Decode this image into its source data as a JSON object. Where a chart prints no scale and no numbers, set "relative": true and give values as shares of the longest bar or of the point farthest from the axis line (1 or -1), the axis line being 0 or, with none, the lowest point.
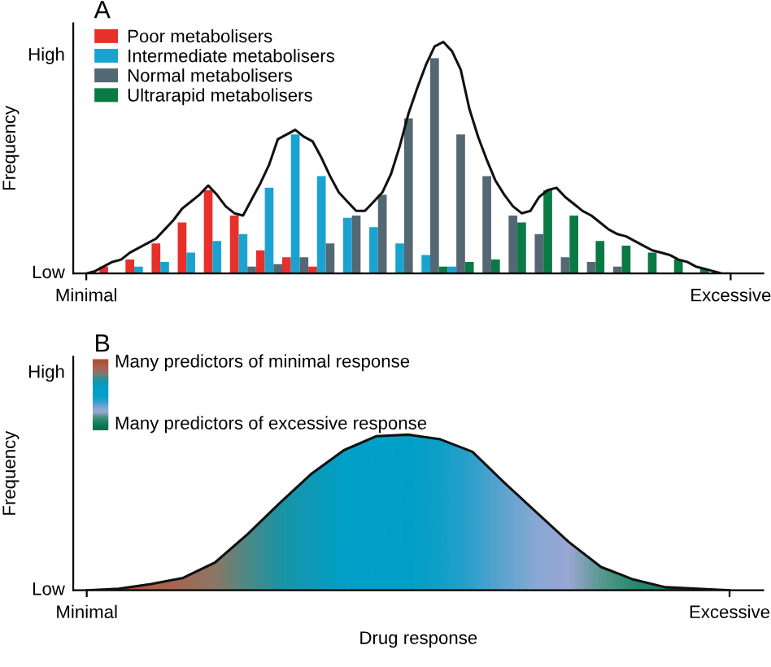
{
  "chart_data": [
    {
      "type": "bar",
      "title": "A",
      "ylabel": "Frequency",
      "relative": true,
      "annotations": [
        "High",
        "Low"
      ],
      "grid": false,
      "legend": "top left",
      "categories": [
        "Minimal",
        null,
        null,
        null,
        null,
        null,
        null,
        null,
        null,
        null,
        null,
        null,
        null,
        null,
        null,
        null,
        null,
        null,
        null,
        null,
        null,
        null,
        null,
        null,
        null,
        null,
        null,
        null,
        null,
        null,
        null,
        null,
        null,
        null,
        null,
        null,
        null,
        null,
        null,
        null,
        null,
        null,
        null,
        null,
        null,
        null,
        null,
        null,
        null,
        null,
        null,
        null,
        null,
        null,
        null,
        null,
        null,
        null,
        null,
        null,
        null,
        null,
        null,
        null,
        null,
        null,
        null,
        null,
        null,
        null,
        null,
        null,
        null,
        null,
        "Excessive"
      ],
      "series": [
        {
          "name": "Poor metabolisers",
          "color": "#e8302a",
          "values": [
            null,
            null,
            0.03,
            null,
            null,
            0.06,
            null,
            null,
            0.13,
            null,
            null,
            0.22,
            null,
            null,
            0.36,
            null,
            null,
            0.25,
            null,
            null,
            0.1,
            null,
            null,
            0.07,
            null,
            null,
            0.03,
            null,
            null,
            null,
            null,
            null,
            null,
            null,
            null,
            null,
            null,
            null,
            null,
            null,
            null,
            null,
            null,
            null,
            null,
            null,
            null,
            null,
            null,
            null,
            null,
            null,
            null,
            null,
            null,
            null,
            null,
            null,
            null,
            null,
            null,
            null,
            null,
            null,
            null,
            null,
            null,
            null,
            null,
            null,
            null,
            null,
            null,
            null,
            null
          ]
        },
        {
          "name": "Intermediate metabolisers",
          "color": "#1aa3d0",
          "values": [
            null,
            null,
            null,
            null,
            null,
            null,
            0.03,
            null,
            null,
            0.05,
            null,
            null,
            0.09,
            null,
            null,
            0.14,
            null,
            null,
            0.17,
            null,
            null,
            0.37,
            null,
            null,
            0.6,
            null,
            null,
            0.42,
            null,
            null,
            0.24,
            null,
            null,
            0.2,
            null,
            null,
            0.13,
            null,
            null,
            0.08,
            null,
            null,
            0.03,
            null,
            null,
            null,
            null,
            null,
            null,
            null,
            null,
            null,
            null,
            null,
            null,
            null,
            null,
            null,
            null,
            null,
            null,
            null,
            null,
            null,
            null,
            null,
            null,
            null,
            null,
            null,
            null,
            null,
            null,
            null,
            null
          ]
        },
        {
          "name": "Normal metabolisers",
          "color": "#546873",
          "values": [
            null,
            null,
            null,
            null,
            null,
            null,
            null,
            null,
            null,
            null,
            null,
            null,
            null,
            null,
            null,
            null,
            null,
            null,
            null,
            0.03,
            null,
            null,
            0.04,
            null,
            null,
            0.07,
            null,
            null,
            0.13,
            null,
            null,
            0.25,
            null,
            null,
            0.34,
            null,
            null,
            0.67,
            null,
            null,
            0.93,
            null,
            null,
            0.6,
            null,
            null,
            0.42,
            null,
            null,
            0.25,
            null,
            null,
            0.17,
            null,
            null,
            0.07,
            null,
            null,
            0.05,
            null,
            null,
            0.03,
            null,
            null,
            null,
            null,
            null,
            null,
            null,
            null,
            null,
            null,
            null,
            null,
            null
          ]
        },
        {
          "name": "Ultrarapid metabolisers",
          "color": "#0a7a45",
          "values": [
            null,
            null,
            null,
            null,
            null,
            null,
            null,
            null,
            null,
            null,
            null,
            null,
            null,
            null,
            null,
            null,
            null,
            null,
            null,
            null,
            null,
            null,
            null,
            null,
            null,
            null,
            null,
            null,
            null,
            null,
            null,
            null,
            null,
            null,
            null,
            null,
            null,
            null,
            null,
            null,
            null,
            0.03,
            null,
            null,
            0.05,
            null,
            null,
            0.06,
            null,
            null,
            0.22,
            null,
            null,
            0.36,
            null,
            null,
            0.25,
            null,
            null,
            0.14,
            null,
            null,
            0.12,
            null,
            null,
            0.09,
            null,
            null,
            0.06,
            null,
            null,
            0.02,
            null,
            null,
            null
          ]
        },
        {
          "type": "line",
          "color": "#111111",
          "values": [
            0,
            0.01,
            0.03,
            0.05,
            0.06,
            0.09,
            0.11,
            0.13,
            0.15,
            0.19,
            0.23,
            0.28,
            0.31,
            0.34,
            0.38,
            0.34,
            0.29,
            0.26,
            0.25,
            0.32,
            0.39,
            0.47,
            0.58,
            0.6,
            0.62,
            0.59,
            0.57,
            0.5,
            0.42,
            0.35,
            0.31,
            0.27,
            0.27,
            0.31,
            0.35,
            0.43,
            0.55,
            0.69,
            0.8,
            0.9,
            0.98,
            1,
            0.96,
            0.88,
            0.71,
            0.59,
            0.49,
            0.4,
            0.34,
            0.29,
            0.26,
            0.27,
            0.33,
            0.36,
            0.37,
            0.33,
            0.3,
            0.27,
            0.25,
            0.22,
            0.19,
            0.17,
            0.16,
            0.14,
            0.12,
            0.1,
            0.09,
            0.08,
            0.06,
            0.05,
            0.03,
            0.02,
            0.01,
            0,
            0
          ]
        }
      ]
    },
    {
      "type": "area",
      "title": "B",
      "xlabel": "Drug response",
      "ylabel": "Frequency",
      "relative": true,
      "grid": false,
      "categories": [
        "Minimal",
        null,
        null,
        null,
        null,
        null,
        null,
        null,
        null,
        null,
        null,
        null,
        null,
        null,
        null,
        null,
        null,
        null,
        null,
        null,
        "Excessive"
      ],
      "annotations": [
        "High",
        "Low",
        "Many predictors of minimal response",
        "Many predictors of excessive response"
      ],
      "series": [
        {
          "color": "#00a0c8",
          "values": [
            0,
            0.01,
            0.04,
            0.08,
            0.18,
            0.36,
            0.56,
            0.75,
            0.9,
            0.99,
            1,
            0.97,
            0.89,
            0.69,
            0.5,
            0.31,
            0.15,
            0.07,
            0.02,
            0.01,
            0
          ],
          "colors": [
            "#b0503a",
            "#b0503a",
            "#b0604a",
            "#a06a55",
            "#8a7868",
            "#4a8a88",
            "#1a95a5",
            "#0e9ab8",
            "#00a0c8",
            "#00a0c8",
            "#00a0c8",
            "#10a0c8",
            "#30a0cc",
            "#60a4d0",
            "#8aa8d4",
            "#9aa6d4",
            "#5a9890",
            "#2a8a70",
            "#1a8060",
            "#107050",
            "#107050"
          ]
        }
      ]
    }
  ]
}
